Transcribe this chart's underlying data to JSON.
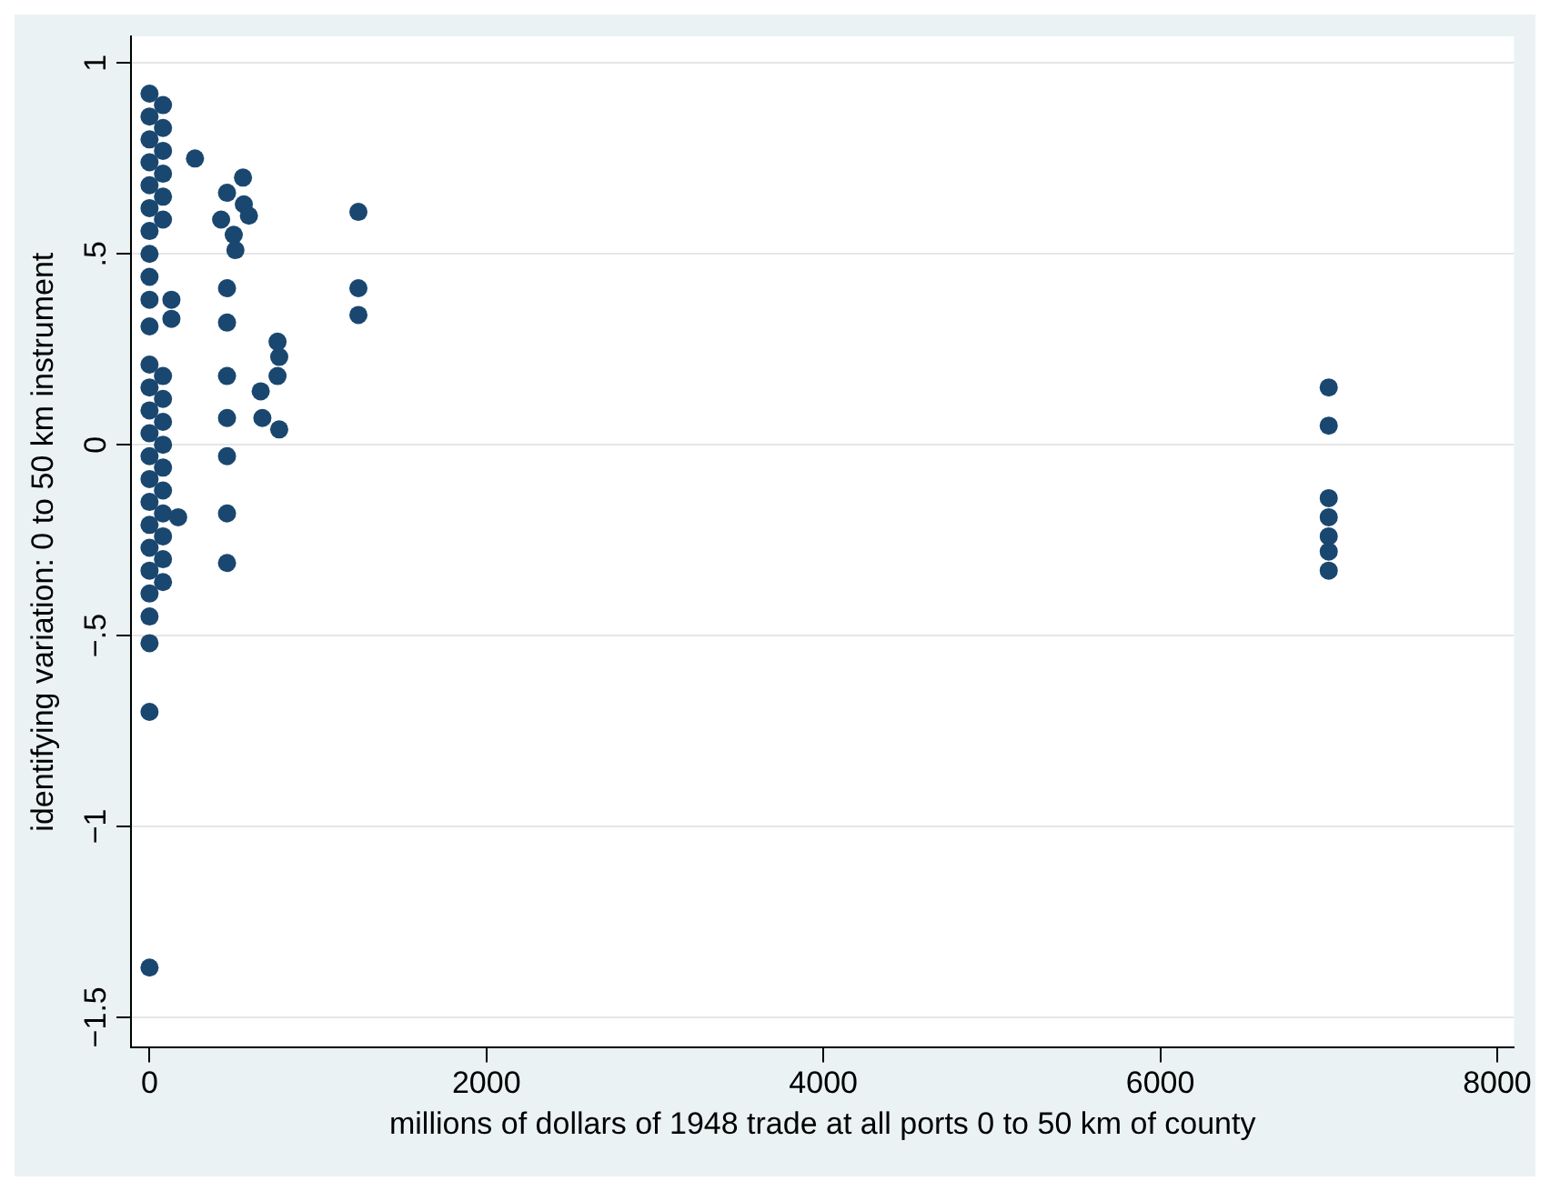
{
  "chart_data": {
    "type": "scatter",
    "xlabel": "millions of dollars of 1948 trade at all ports 0 to 50 km of county",
    "ylabel": "identifying variation: 0 to 50 km instrument",
    "xlim": [
      -110,
      8100
    ],
    "ylim": [
      -1.58,
      1.07
    ],
    "xticks": [
      0,
      2000,
      4000,
      6000,
      8000
    ],
    "yticks": [
      {
        "value": -1.5,
        "label": "−1.5"
      },
      {
        "value": -1,
        "label": "−1"
      },
      {
        "value": -0.5,
        "label": "−.5"
      },
      0,
      {
        "value": 0.5,
        "label": ".5"
      },
      1
    ],
    "grid": "y",
    "legend": false,
    "marker": "circle",
    "series": [
      {
        "color": "#1a476f",
        "x": [
          0,
          0,
          0,
          0,
          0,
          0,
          0,
          0,
          0,
          0,
          0,
          0,
          0,
          0,
          0,
          0,
          0,
          0,
          0,
          0,
          0,
          0,
          0,
          0,
          80,
          80,
          80,
          80,
          80,
          80,
          80,
          80,
          80,
          80,
          80,
          80,
          80,
          80,
          80,
          80,
          130,
          130,
          170,
          0,
          0,
          270,
          460,
          555,
          560,
          590,
          425,
          500,
          510,
          460,
          460,
          460,
          460,
          460,
          460,
          460,
          760,
          770,
          760,
          660,
          670,
          770,
          1240,
          1240,
          1240,
          7000,
          7000,
          7000,
          7000,
          7000,
          7000,
          7000
        ],
        "values": [
          0.92,
          0.86,
          0.8,
          0.74,
          0.68,
          0.62,
          0.56,
          0.5,
          0.44,
          0.38,
          0.31,
          0.21,
          0.15,
          0.09,
          0.03,
          -0.03,
          -0.09,
          -0.15,
          -0.21,
          -0.27,
          -0.33,
          -0.39,
          -0.45,
          -0.52,
          0.89,
          0.83,
          0.77,
          0.71,
          0.65,
          0.59,
          0.18,
          0.12,
          0.06,
          0,
          -0.06,
          -0.12,
          -0.18,
          -0.24,
          -0.3,
          -0.36,
          0.38,
          0.33,
          -0.19,
          -0.7,
          -1.37,
          0.75,
          0.66,
          0.7,
          0.63,
          0.6,
          0.59,
          0.55,
          0.51,
          0.41,
          0.32,
          0.18,
          0.07,
          -0.03,
          -0.18,
          -0.31,
          0.27,
          0.23,
          0.18,
          0.14,
          0.07,
          0.04,
          0.61,
          0.41,
          0.34,
          0.15,
          0.05,
          -0.14,
          -0.19,
          -0.24,
          -0.28,
          -0.33
        ]
      }
    ]
  }
}
